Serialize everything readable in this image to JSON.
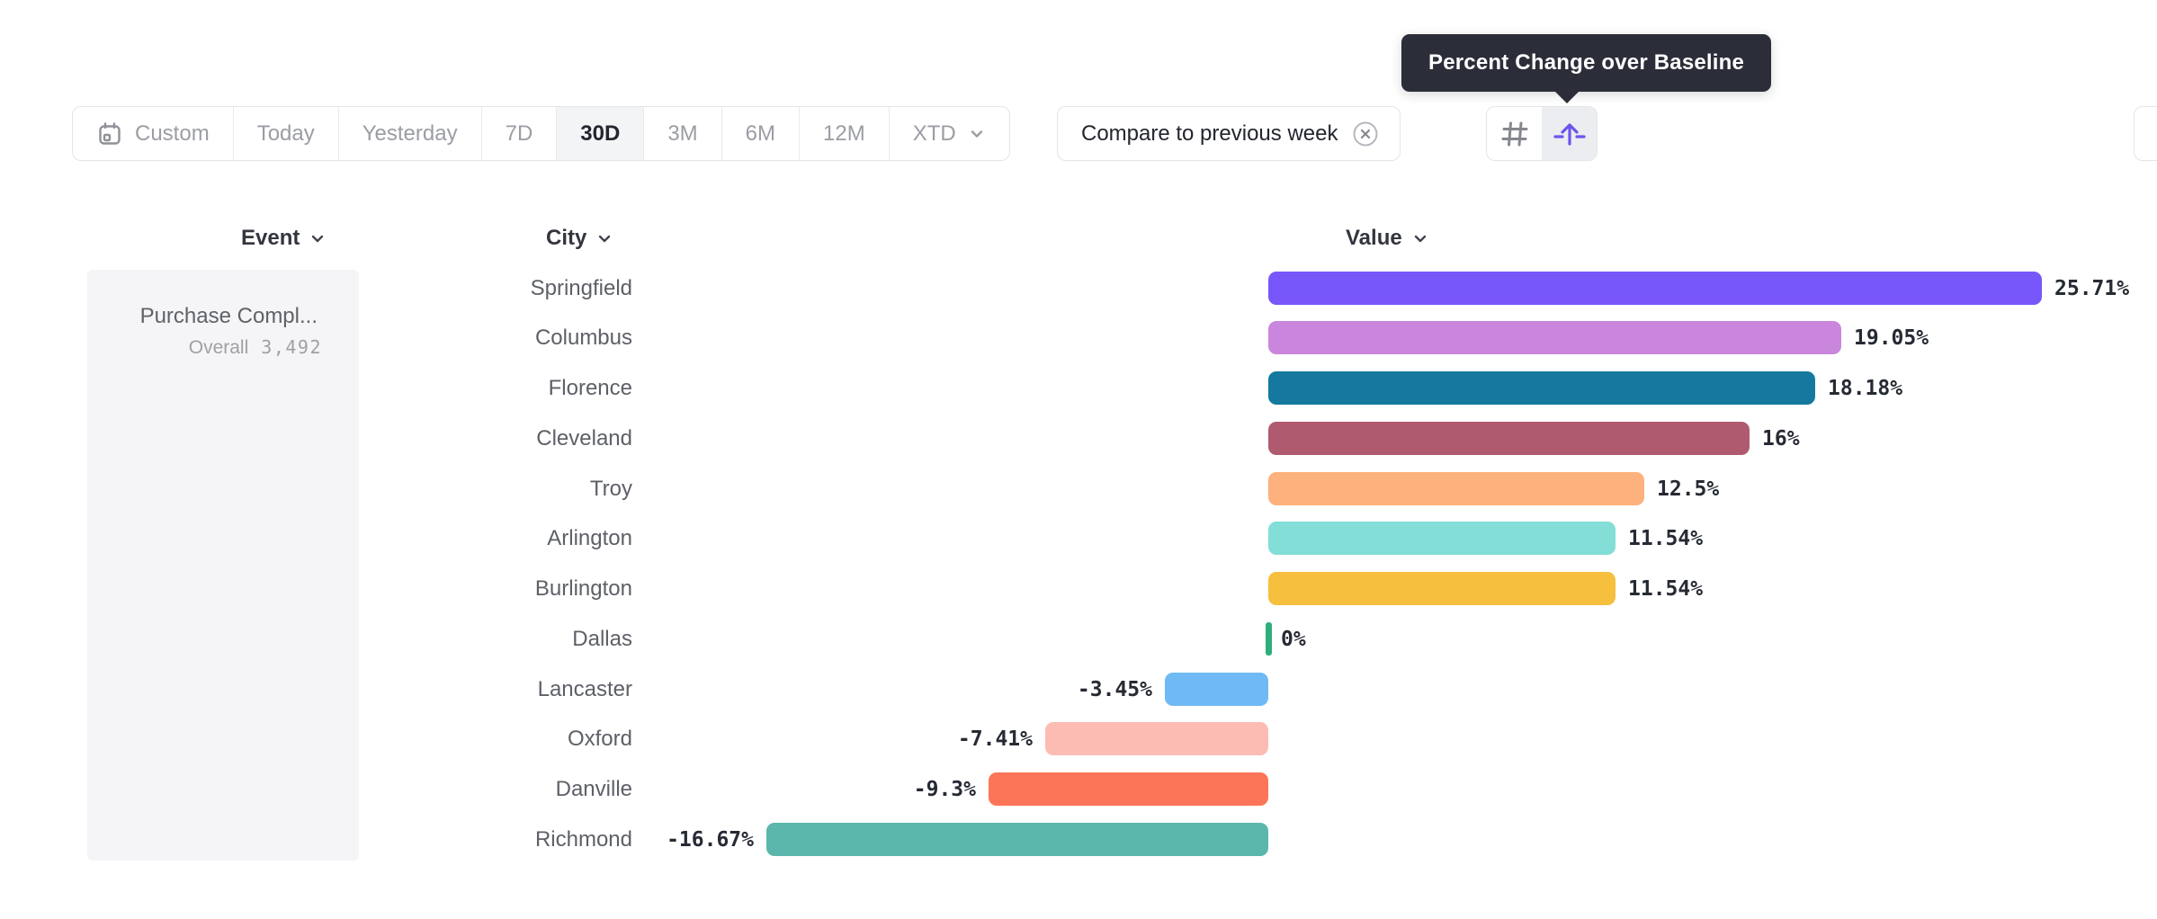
{
  "tooltip": {
    "text": "Percent Change over Baseline"
  },
  "toolbar": {
    "date_ranges": [
      {
        "label": "Custom"
      },
      {
        "label": "Today"
      },
      {
        "label": "Yesterday"
      },
      {
        "label": "7D"
      },
      {
        "label": "30D"
      },
      {
        "label": "3M"
      },
      {
        "label": "6M"
      },
      {
        "label": "12M"
      },
      {
        "label": "XTD"
      }
    ],
    "active_range": "30D",
    "compare_button": {
      "label": "Compare to previous week"
    },
    "view_toggles": {
      "grid": "hash-icon",
      "uplift": "uplift-arrow-icon",
      "active": "uplift"
    },
    "accent_color": "#6a55ee"
  },
  "columns": {
    "event": "Event",
    "city": "City",
    "value": "Value"
  },
  "event_panel": {
    "event_name": "Purchase Compl...",
    "overall_label": "Overall",
    "overall_value": "3,492"
  },
  "chart_data": {
    "type": "bar",
    "orientation": "horizontal",
    "title": "Percent Change over Baseline",
    "value_suffix": "%",
    "baseline": 0,
    "xlim": [
      -16.67,
      25.71
    ],
    "grid": false,
    "categories": [
      "Springfield",
      "Columbus",
      "Florence",
      "Cleveland",
      "Troy",
      "Arlington",
      "Burlington",
      "Dallas",
      "Lancaster",
      "Oxford",
      "Danville",
      "Richmond"
    ],
    "values": [
      25.71,
      19.05,
      18.18,
      16,
      12.5,
      11.54,
      11.54,
      0,
      -3.45,
      -7.41,
      -9.3,
      -16.67
    ],
    "labels": [
      "25.71%",
      "19.05%",
      "18.18%",
      "16%",
      "12.5%",
      "11.54%",
      "11.54%",
      "0%",
      "-3.45%",
      "-7.41%",
      "-9.3%",
      "-16.67%"
    ],
    "colors": [
      "#7857fa",
      "#c986dc",
      "#15799f",
      "#b05a70",
      "#fdb17c",
      "#82ded6",
      "#f6bf3e",
      "#2eae7d",
      "#6fbaf4",
      "#fcbcb4",
      "#fd7558",
      "#5bb6ab"
    ]
  }
}
